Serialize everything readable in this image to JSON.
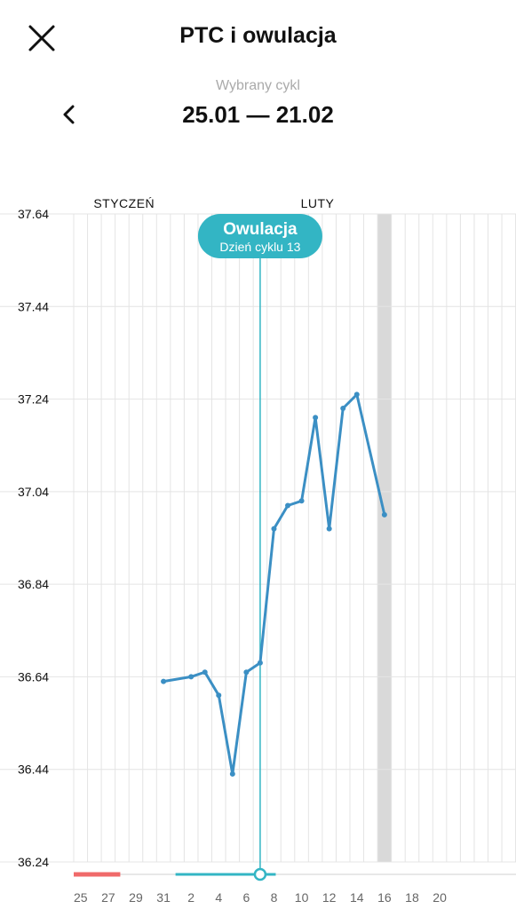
{
  "header": {
    "title": "PTC i owulacja",
    "close_icon": "close-icon",
    "back_icon": "chevron-left-icon"
  },
  "cycle": {
    "caption": "Wybrany cykl",
    "range": "25.01 — 21.02"
  },
  "colors": {
    "line": "#3b8fc4",
    "ovulation": "#33b5c4",
    "period": "#f06a6a",
    "grid": "#e4e4e4",
    "today_band": "#d9d9d9"
  },
  "chart_data": {
    "type": "line",
    "title": "",
    "xlabel": "",
    "ylabel": "",
    "y_ticks": [
      "37.64",
      "37.44",
      "37.24",
      "37.04",
      "36.84",
      "36.64",
      "36.44",
      "36.24"
    ],
    "ylim": [
      36.24,
      37.64
    ],
    "days": [
      25,
      26,
      27,
      28,
      29,
      30,
      31,
      1,
      2,
      3,
      4,
      5,
      6,
      7,
      8,
      9,
      10,
      11,
      12,
      13,
      14,
      15,
      16,
      17,
      18,
      19,
      20,
      21,
      22,
      23,
      24,
      25,
      26,
      27,
      28,
      29,
      30,
      31
    ],
    "x_tick_labels": [
      "25",
      "27",
      "29",
      "31",
      "2",
      "4",
      "6",
      "8",
      "10",
      "12",
      "14",
      "16",
      "18",
      "20"
    ],
    "month_labels": [
      {
        "label": "STYCZEŃ",
        "day_index": 1
      },
      {
        "label": "LUTY",
        "day_index": 16
      }
    ],
    "series": [
      {
        "points": [
          {
            "day_index": 6,
            "value": 36.63
          },
          {
            "day_index": 8,
            "value": 36.64
          },
          {
            "day_index": 9,
            "value": 36.65
          },
          {
            "day_index": 10,
            "value": 36.6
          },
          {
            "day_index": 11,
            "value": 36.43
          },
          {
            "day_index": 12,
            "value": 36.65
          },
          {
            "day_index": 13,
            "value": 36.67
          },
          {
            "day_index": 14,
            "value": 36.96
          },
          {
            "day_index": 15,
            "value": 37.01
          },
          {
            "day_index": 16,
            "value": 37.02
          },
          {
            "day_index": 17,
            "value": 37.2
          },
          {
            "day_index": 18,
            "value": 36.96
          },
          {
            "day_index": 19,
            "value": 37.22
          },
          {
            "day_index": 20,
            "value": 37.25
          },
          {
            "day_index": 22,
            "value": 36.99
          }
        ]
      }
    ],
    "ovulation": {
      "day_index": 13,
      "label": "Owulacja",
      "sublabel": "Dzień cyklu 13"
    },
    "period_range": [
      0,
      3
    ],
    "fertile_range": [
      7,
      14
    ],
    "today_band_day_index": 22,
    "grid": true
  }
}
